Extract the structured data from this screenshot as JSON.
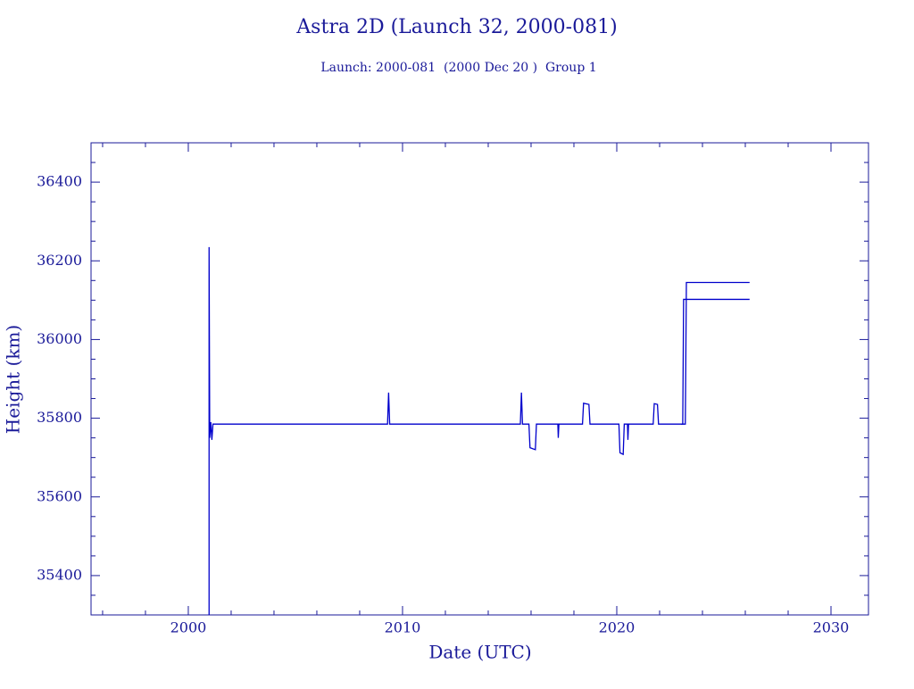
{
  "chart_data": {
    "type": "line",
    "title": "Astra 2D (Launch 32, 2000-081)",
    "subtitle": "Launch: 2000-081  (2000 Dec 20 )  Group 1",
    "x_label": "Date (UTC)",
    "y_label": "Height (km)",
    "xlim": [
      1995.46,
      2031.75
    ],
    "ylim": [
      35300,
      36500
    ],
    "xticks": [
      2000,
      2010,
      2020,
      2030
    ],
    "yticks": [
      35400,
      35600,
      35800,
      36000,
      36200,
      36400
    ],
    "xminorticks": [
      1996,
      1998,
      2002,
      2004,
      2006,
      2008,
      2012,
      2014,
      2016,
      2018,
      2022,
      2024,
      2026,
      2028
    ],
    "yminorticks": [
      35350,
      35450,
      35500,
      35550,
      35650,
      35700,
      35750,
      35850,
      35900,
      35950,
      36050,
      36100,
      36150,
      36250,
      36300,
      36350,
      36450
    ],
    "color": "#0000cc",
    "series": [
      {
        "color": "#0000cc",
        "x": [
          2000.97,
          2000.97,
          2001.0,
          2001.05,
          2001.1,
          2001.15,
          2009.3,
          2009.35,
          2009.4,
          2015.5,
          2015.55,
          2015.6,
          2015.9,
          2015.95,
          2016.2,
          2016.25,
          2017.25,
          2017.27,
          2017.3,
          2018.4,
          2018.45,
          2018.7,
          2018.75,
          2020.1,
          2020.15,
          2020.3,
          2020.35,
          2020.5,
          2020.52,
          2020.55,
          2021.7,
          2021.75,
          2021.9,
          2021.95,
          2023.2,
          2023.25,
          2026.2
        ],
        "values": [
          35300,
          36235,
          35750,
          35790,
          35745,
          35785,
          35785,
          35865,
          35785,
          35785,
          35865,
          35785,
          35785,
          35725,
          35720,
          35785,
          35785,
          35750,
          35785,
          35785,
          35838,
          35835,
          35785,
          35785,
          35712,
          35708,
          35785,
          35785,
          35745,
          35785,
          35785,
          35837,
          35835,
          35785,
          35785,
          36145,
          36145
        ]
      },
      {
        "color": "#0000cc",
        "x": [
          2023.0,
          2023.08,
          2023.12,
          2026.2
        ],
        "values": [
          35785,
          35785,
          36102,
          36102
        ]
      }
    ]
  }
}
